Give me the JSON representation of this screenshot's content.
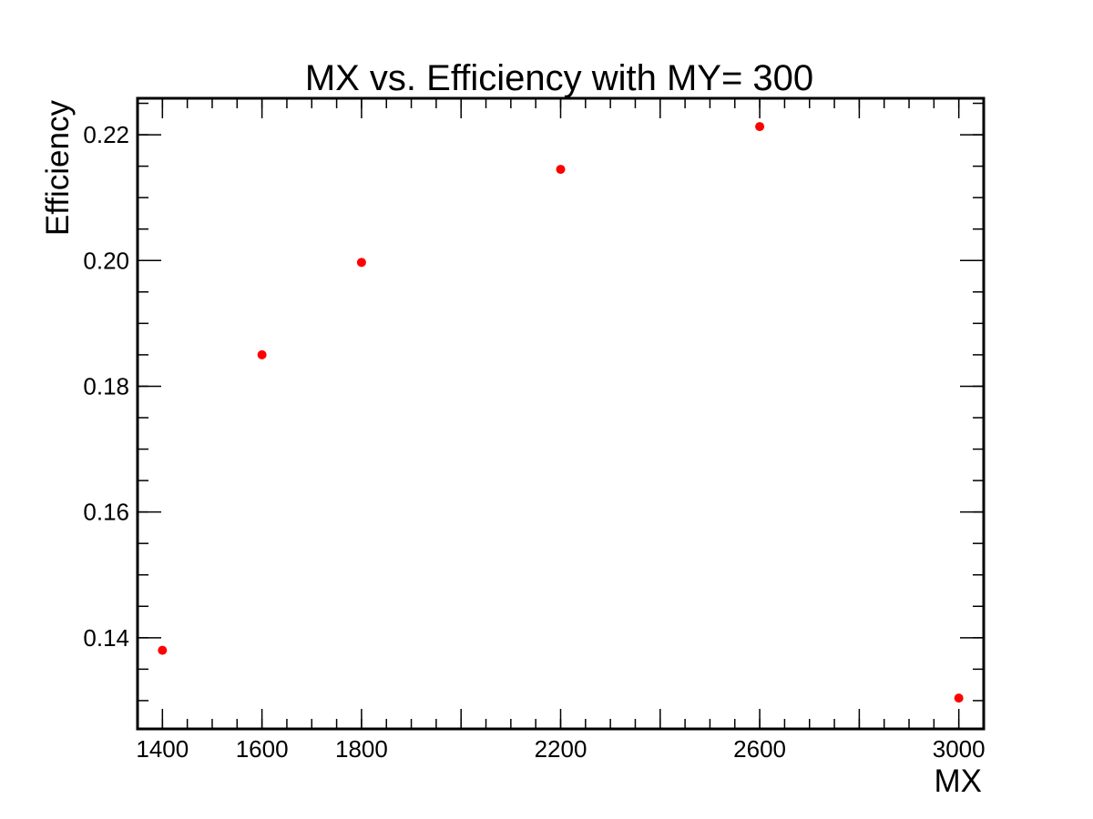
{
  "chart_data": {
    "type": "scatter",
    "title": "MX vs. Efficiency with MY= 300",
    "xlabel": "MX",
    "ylabel": "Efficiency",
    "xlim": [
      1350,
      3050
    ],
    "ylim": [
      0.1255,
      0.2258
    ],
    "xticks": [
      1400,
      1600,
      1800,
      2200,
      2600,
      3000
    ],
    "xtick_labels": [
      "1400",
      "1600",
      "1800",
      "2200",
      "2600",
      "3000"
    ],
    "yticks": [
      0.14,
      0.16,
      0.18,
      0.2,
      0.22
    ],
    "ytick_labels": [
      "0.14",
      "0.16",
      "0.18",
      "0.20",
      "0.22"
    ],
    "grid": false,
    "series": [
      {
        "color": "#ff0000",
        "points": [
          {
            "x": 1400,
            "y": 0.138
          },
          {
            "x": 1600,
            "y": 0.185
          },
          {
            "x": 1800,
            "y": 0.1997
          },
          {
            "x": 2200,
            "y": 0.2145
          },
          {
            "x": 2600,
            "y": 0.2213
          },
          {
            "x": 3000,
            "y": 0.1304
          }
        ]
      }
    ]
  }
}
